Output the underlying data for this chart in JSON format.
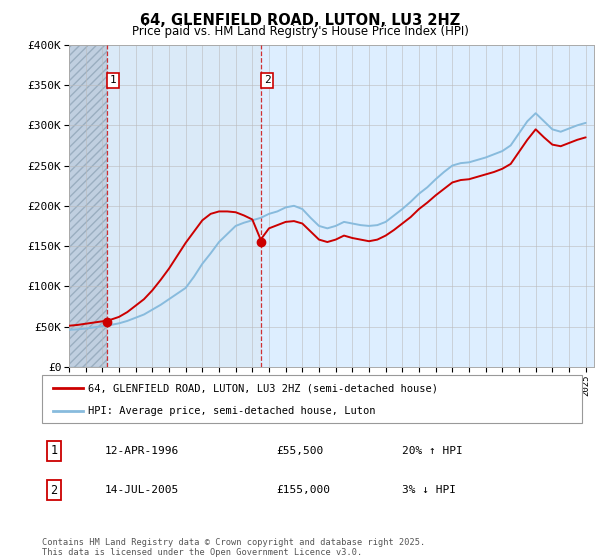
{
  "title": "64, GLENFIELD ROAD, LUTON, LU3 2HZ",
  "subtitle": "Price paid vs. HM Land Registry's House Price Index (HPI)",
  "legend_line1": "64, GLENFIELD ROAD, LUTON, LU3 2HZ (semi-detached house)",
  "legend_line2": "HPI: Average price, semi-detached house, Luton",
  "sale1_label": "1",
  "sale1_date": "12-APR-1996",
  "sale1_price": "£55,500",
  "sale1_hpi": "20% ↑ HPI",
  "sale2_label": "2",
  "sale2_date": "14-JUL-2005",
  "sale2_price": "£155,000",
  "sale2_hpi": "3% ↓ HPI",
  "footer": "Contains HM Land Registry data © Crown copyright and database right 2025.\nThis data is licensed under the Open Government Licence v3.0.",
  "xmin": 1994.0,
  "xmax": 2025.5,
  "ymin": 0,
  "ymax": 400000,
  "red_line_color": "#cc0000",
  "blue_line_color": "#88bbdd",
  "marker_color": "#cc0000",
  "dashed_vline_color": "#cc0000",
  "background_plot": "#ddeeff",
  "hatch_area_color": "#c0cfe0",
  "grid_color": "#bbbbbb",
  "sale1_year": 1996.28,
  "sale1_price_val": 55500,
  "sale2_year": 2005.54,
  "sale2_price_val": 155000,
  "hpi_years": [
    1994,
    1994.5,
    1995,
    1995.5,
    1996,
    1996.5,
    1997,
    1997.5,
    1998,
    1998.5,
    1999,
    1999.5,
    2000,
    2000.5,
    2001,
    2001.5,
    2002,
    2002.5,
    2003,
    2003.5,
    2004,
    2004.5,
    2005,
    2005.5,
    2006,
    2006.5,
    2007,
    2007.5,
    2008,
    2008.5,
    2009,
    2009.5,
    2010,
    2010.5,
    2011,
    2011.5,
    2012,
    2012.5,
    2013,
    2013.5,
    2014,
    2014.5,
    2015,
    2015.5,
    2016,
    2016.5,
    2017,
    2017.5,
    2018,
    2018.5,
    2019,
    2019.5,
    2020,
    2020.5,
    2021,
    2021.5,
    2022,
    2022.5,
    2023,
    2023.5,
    2024,
    2024.5,
    2025
  ],
  "hpi_vals": [
    46000,
    46500,
    47500,
    49000,
    50500,
    52000,
    54000,
    57000,
    61000,
    65000,
    71000,
    77000,
    84000,
    91000,
    98000,
    112000,
    128000,
    141000,
    155000,
    165000,
    175000,
    179000,
    182000,
    185000,
    190000,
    193000,
    198000,
    200000,
    196000,
    185000,
    175000,
    172000,
    175000,
    180000,
    178000,
    176000,
    175000,
    176000,
    180000,
    188000,
    196000,
    205000,
    215000,
    223000,
    233000,
    242000,
    250000,
    253000,
    254000,
    257000,
    260000,
    264000,
    268000,
    275000,
    290000,
    305000,
    315000,
    305000,
    295000,
    292000,
    296000,
    300000,
    303000
  ],
  "red_vals": [
    51000,
    52000,
    53500,
    55000,
    56500,
    58500,
    62000,
    68000,
    76000,
    84000,
    95000,
    108000,
    122000,
    138000,
    154000,
    168000,
    182000,
    190000,
    193000,
    193000,
    192000,
    188000,
    183000,
    158000,
    172000,
    176000,
    180000,
    181000,
    178000,
    168000,
    158000,
    155000,
    158000,
    163000,
    160000,
    158000,
    156000,
    158000,
    163000,
    170000,
    178000,
    186000,
    196000,
    204000,
    213000,
    221000,
    229000,
    232000,
    233000,
    236000,
    239000,
    242000,
    246000,
    252000,
    267000,
    282000,
    295000,
    285000,
    276000,
    274000,
    278000,
    282000,
    285000
  ]
}
